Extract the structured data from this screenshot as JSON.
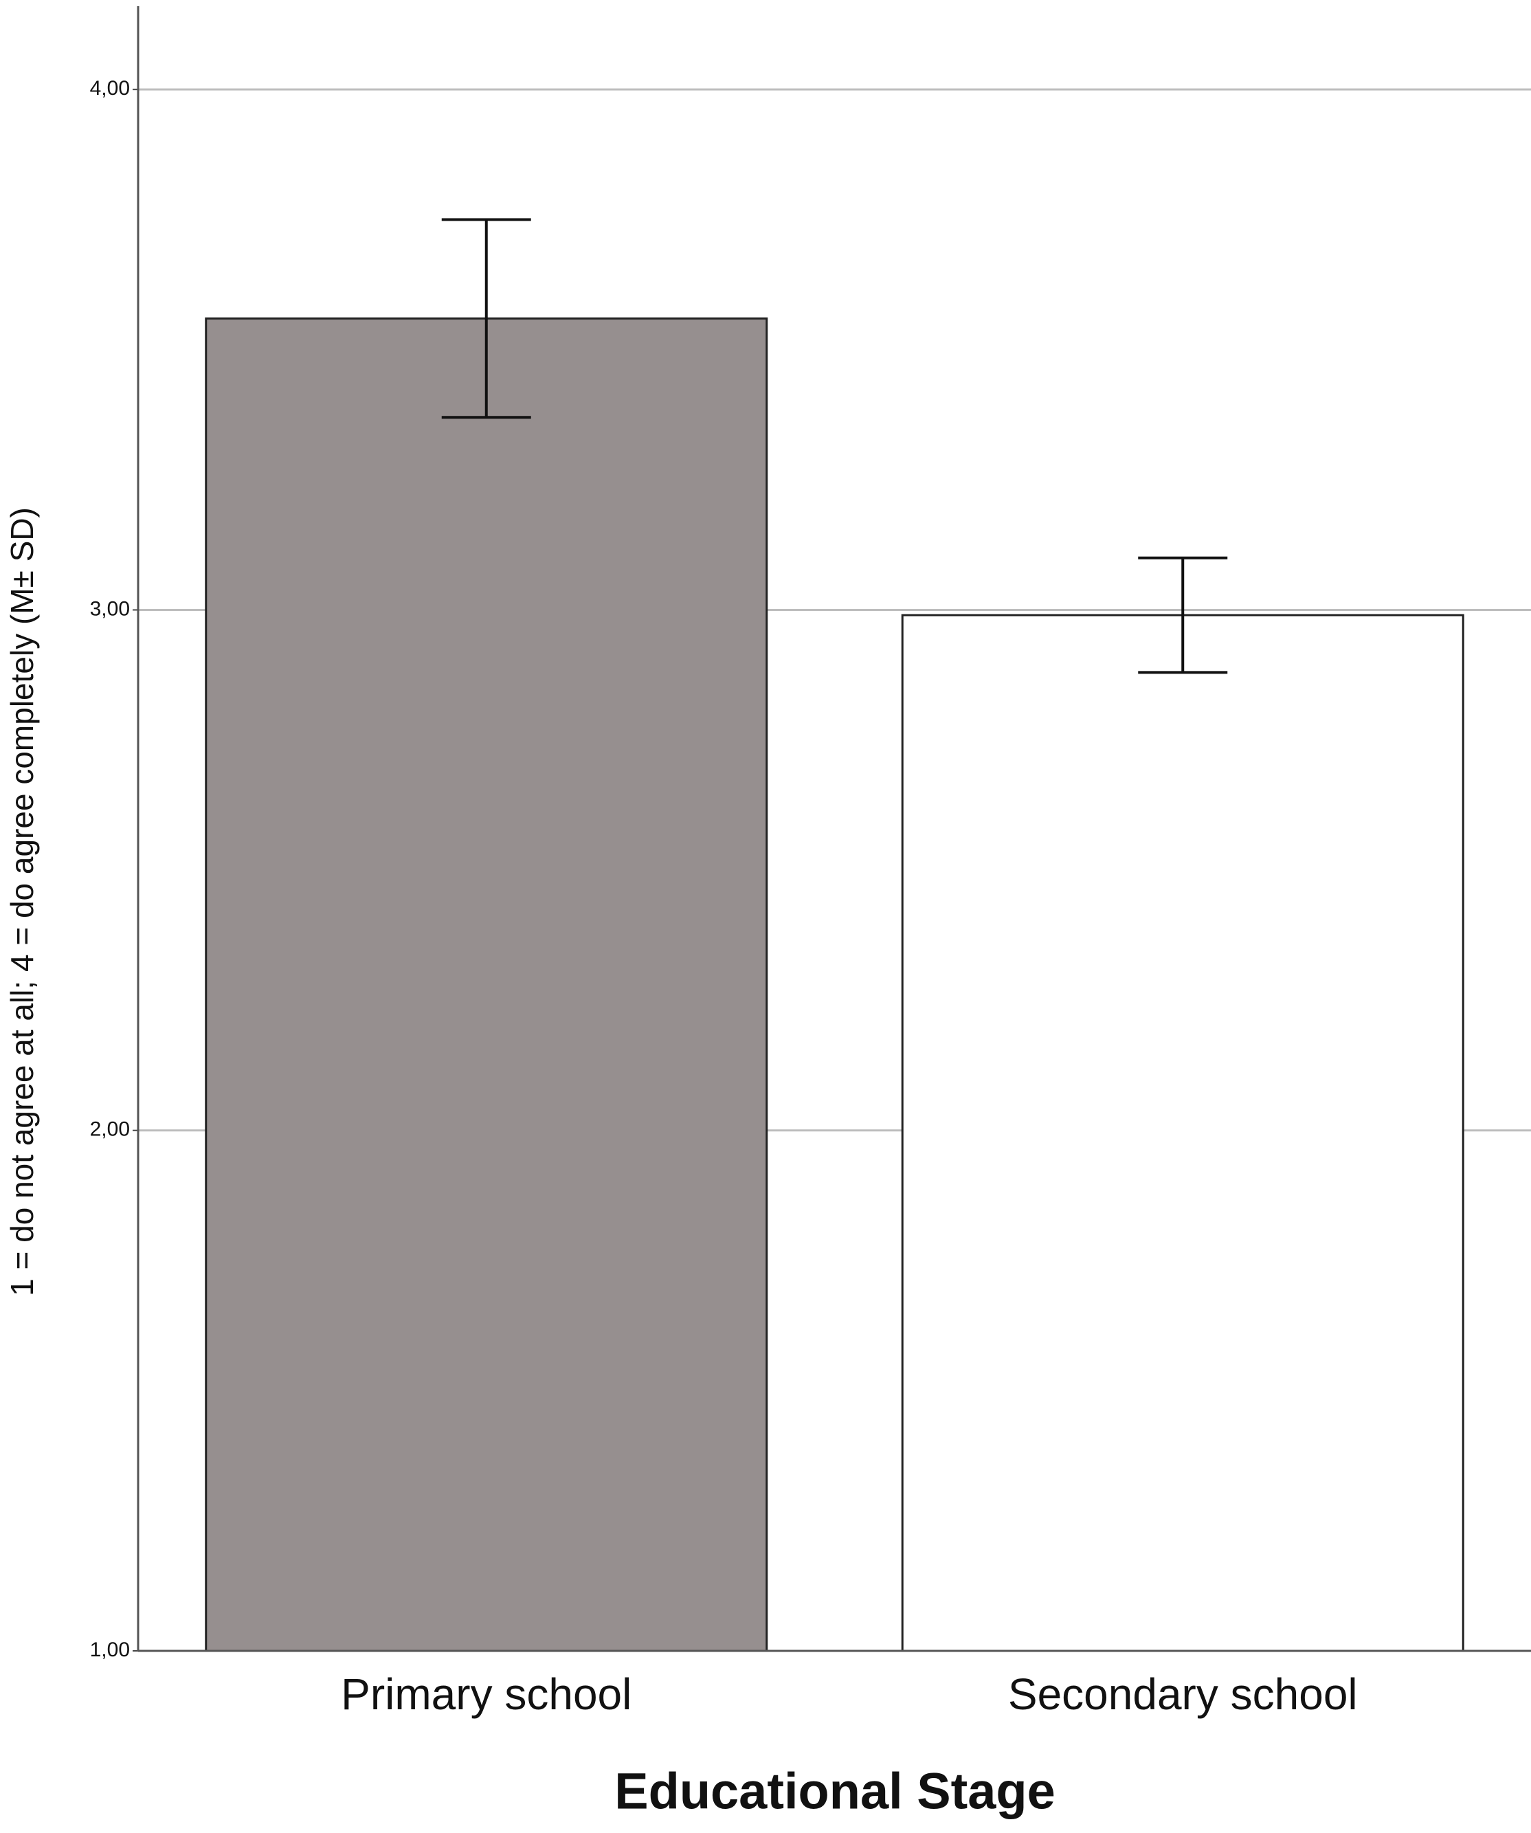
{
  "chart_data": {
    "type": "bar",
    "categories": [
      "Primary school",
      "Secondary school"
    ],
    "values": [
      3.56,
      2.99
    ],
    "errors": [
      0.19,
      0.11
    ],
    "colors": [
      "#968f8f",
      "#ffffff"
    ],
    "x_label": "Educational Stage",
    "y_label": "1 = do not agree at all; 4 = do agree completely (M± SD)",
    "ylim": [
      1,
      4.16
    ],
    "yticks": [
      {
        "value": 1,
        "label": "1,00"
      },
      {
        "value": 2,
        "label": "2,00"
      },
      {
        "value": 3,
        "label": "3,00"
      },
      {
        "value": 4,
        "label": "4,00"
      }
    ],
    "grid": true
  }
}
